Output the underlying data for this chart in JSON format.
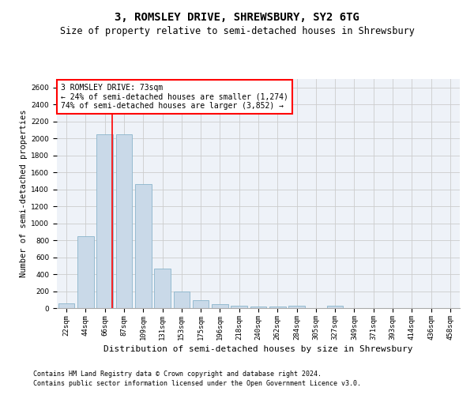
{
  "title": "3, ROMSLEY DRIVE, SHREWSBURY, SY2 6TG",
  "subtitle": "Size of property relative to semi-detached houses in Shrewsbury",
  "xlabel": "Distribution of semi-detached houses by size in Shrewsbury",
  "ylabel": "Number of semi-detached properties",
  "categories": [
    "22sqm",
    "44sqm",
    "66sqm",
    "87sqm",
    "109sqm",
    "131sqm",
    "153sqm",
    "175sqm",
    "196sqm",
    "218sqm",
    "240sqm",
    "262sqm",
    "284sqm",
    "305sqm",
    "327sqm",
    "349sqm",
    "371sqm",
    "393sqm",
    "414sqm",
    "436sqm",
    "458sqm"
  ],
  "values": [
    52,
    850,
    2050,
    2050,
    1460,
    470,
    200,
    95,
    45,
    30,
    20,
    20,
    25,
    0,
    25,
    0,
    0,
    0,
    0,
    0,
    0
  ],
  "bar_color": "#c9d9e8",
  "bar_edge_color": "#8ab4cc",
  "annotation_line1": "3 ROMSLEY DRIVE: 73sqm",
  "annotation_line2": "← 24% of semi-detached houses are smaller (1,274)",
  "annotation_line3": "74% of semi-detached houses are larger (3,852) →",
  "annotation_box_color": "white",
  "annotation_box_edge_color": "red",
  "ylim": [
    0,
    2700
  ],
  "yticks": [
    0,
    200,
    400,
    600,
    800,
    1000,
    1200,
    1400,
    1600,
    1800,
    2000,
    2200,
    2400,
    2600
  ],
  "grid_color": "#cccccc",
  "bg_color": "#eef2f8",
  "footer1": "Contains HM Land Registry data © Crown copyright and database right 2024.",
  "footer2": "Contains public sector information licensed under the Open Government Licence v3.0.",
  "title_fontsize": 10,
  "subtitle_fontsize": 8.5,
  "xlabel_fontsize": 8,
  "ylabel_fontsize": 7.5,
  "tick_fontsize": 6.5,
  "annotation_fontsize": 7,
  "footer_fontsize": 6
}
